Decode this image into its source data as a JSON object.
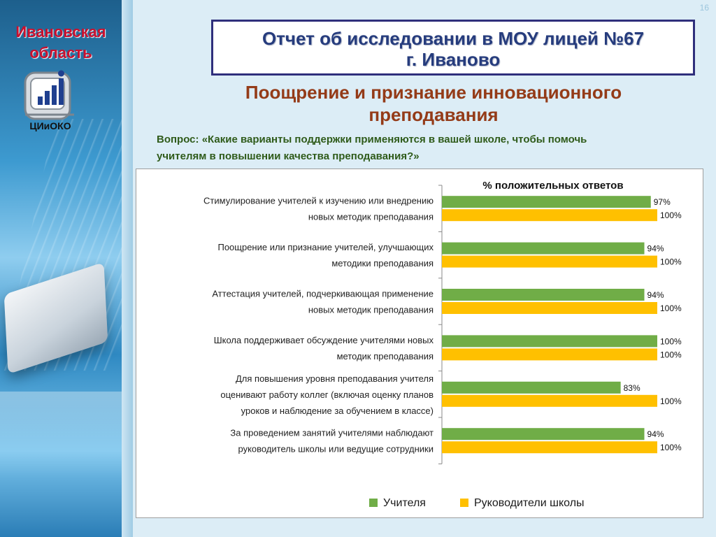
{
  "page_number": "16",
  "sidebar": {
    "region_line1": "Ивановская",
    "region_line2": "область",
    "logo_text": "ЦИиОКО"
  },
  "header": {
    "title_line1": "Отчет об исследовании в МОУ лицей №67",
    "title_line2": "г. Иваново"
  },
  "slide": {
    "subtitle_line1": "Поощрение и признание инновационного",
    "subtitle_line2": "преподавания",
    "question_line1": "Вопрос: «Какие варианты поддержки применяются в вашей школе, чтобы помочь",
    "question_line2": "учителям в повышении качества преподавания?»"
  },
  "colors": {
    "teachers": "#70ad47",
    "heads": "#ffc000"
  },
  "chart_data": {
    "type": "bar",
    "orientation": "horizontal",
    "title": "% положительных ответов",
    "categories": [
      [
        "Стимулирование учителей к изучению или внедрению",
        "новых методик преподавания"
      ],
      [
        "Поощрение или признание учителей, улучшающих",
        "методики преподавания"
      ],
      [
        "Аттестация учителей, подчеркивающая применение",
        "новых методик преподавания"
      ],
      [
        "Школа поддерживает обсуждение учителями новых",
        "методик преподавания"
      ],
      [
        "Для повышения уровня преподавания учителя",
        "оценивают работу коллег (включая оценку планов",
        "уроков и наблюдение за обучением в классе)"
      ],
      [
        "За проведением занятий учителями наблюдают",
        "руководитель школы или ведущие сотрудники"
      ]
    ],
    "series": [
      {
        "name": "Учителя",
        "values": [
          97,
          94,
          94,
          100,
          83,
          94
        ],
        "labels": [
          "97%",
          "94%",
          "94%",
          "100%",
          "83%",
          "94%"
        ]
      },
      {
        "name": "Руководители школы",
        "values": [
          100,
          100,
          100,
          100,
          100,
          100
        ],
        "labels": [
          "100%",
          "100%",
          "100%",
          "100%",
          "100%",
          "100%"
        ]
      }
    ],
    "xlim": [
      0,
      100
    ],
    "grid": false,
    "legend_position": "bottom"
  }
}
